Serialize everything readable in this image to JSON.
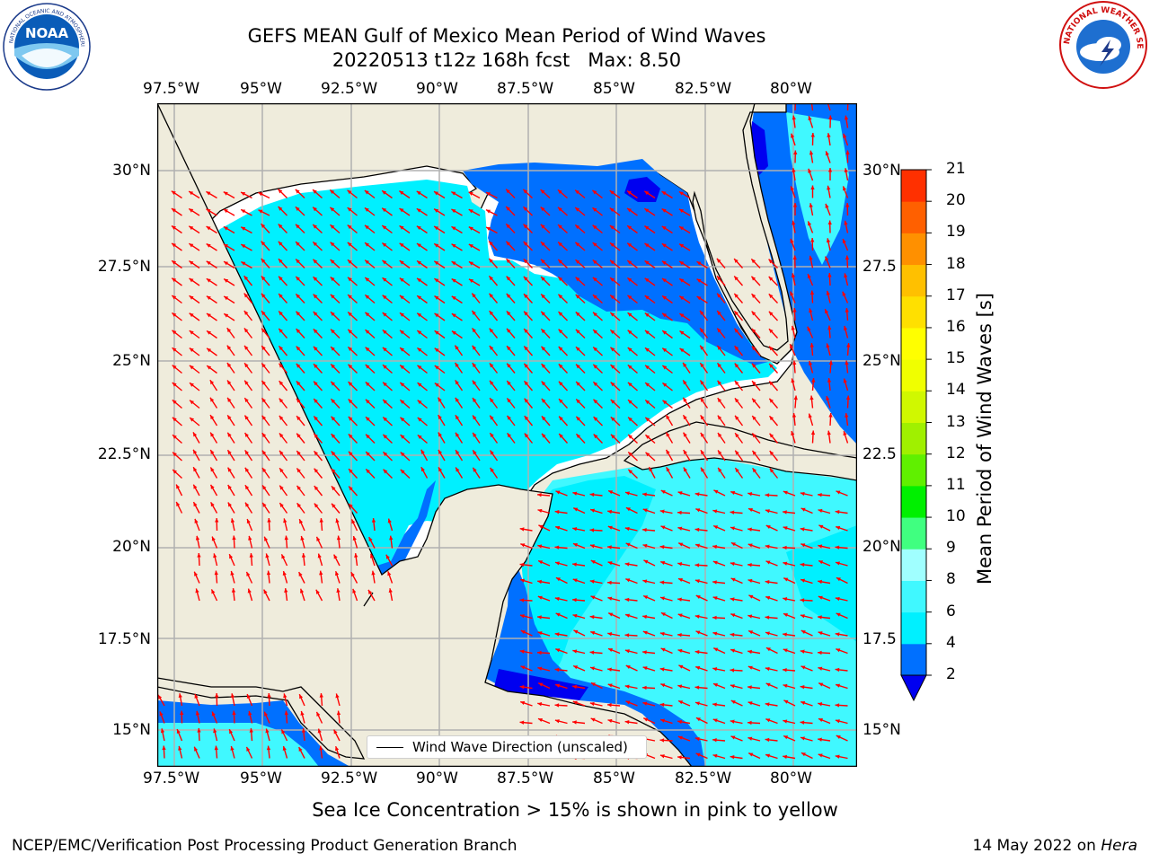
{
  "title": {
    "line1": "GEFS MEAN Gulf of Mexico Mean Period of Wind Waves",
    "line2": "20220513 t12z 168h fcst   Max: 8.50"
  },
  "axes": {
    "lon_labels": [
      "97.5°W",
      "95°W",
      "92.5°W",
      "90°W",
      "87.5°W",
      "85°W",
      "82.5°W",
      "80°W"
    ],
    "lat_labels_left": [
      "30°N",
      "27.5°N",
      "25°N",
      "22.5°N",
      "20°N",
      "17.5°N",
      "15°N"
    ],
    "lat_labels_right": [
      "30°N",
      "27.5",
      "25°N",
      "22.5",
      "20°N",
      "17.5",
      "15°N"
    ]
  },
  "colorbar": {
    "title": "Mean Period of Wind Waves [s]",
    "levels": [
      "2",
      "4",
      "6",
      "8",
      "9",
      "10",
      "11",
      "12",
      "13",
      "14",
      "15",
      "16",
      "17",
      "18",
      "19",
      "20",
      "21"
    ],
    "colors": [
      "#0070ff",
      "#00f0ff",
      "#40f8ff",
      "#a0ffff",
      "#40ff80",
      "#00f000",
      "#60f000",
      "#a0f000",
      "#d0f800",
      "#f0ff00",
      "#ffff00",
      "#ffe000",
      "#ffc000",
      "#ff9000",
      "#ff6000",
      "#ff3000"
    ],
    "under_color": "#0000f0"
  },
  "legend": {
    "label": "Wind Wave Direction (unscaled)"
  },
  "colors": {
    "land": "#efecdc",
    "sea_blue": "#0070ff",
    "sea_dark": "#0000f0",
    "sea_cyan": "#00f0ff",
    "sea_light": "#40f8ff",
    "arrow": "#ff0000",
    "grid": "#b0b0b0"
  },
  "note": "Sea Ice Concentration > 15% is shown in pink to yellow",
  "footer": {
    "left": "NCEP/EMC/Verification Post Processing Product Generation Branch",
    "right_prefix": "14 May 2022 on ",
    "right_host": "Hera"
  },
  "logos": {
    "left": "NOAA",
    "right": "NATIONAL WEATHER SERVICE"
  }
}
